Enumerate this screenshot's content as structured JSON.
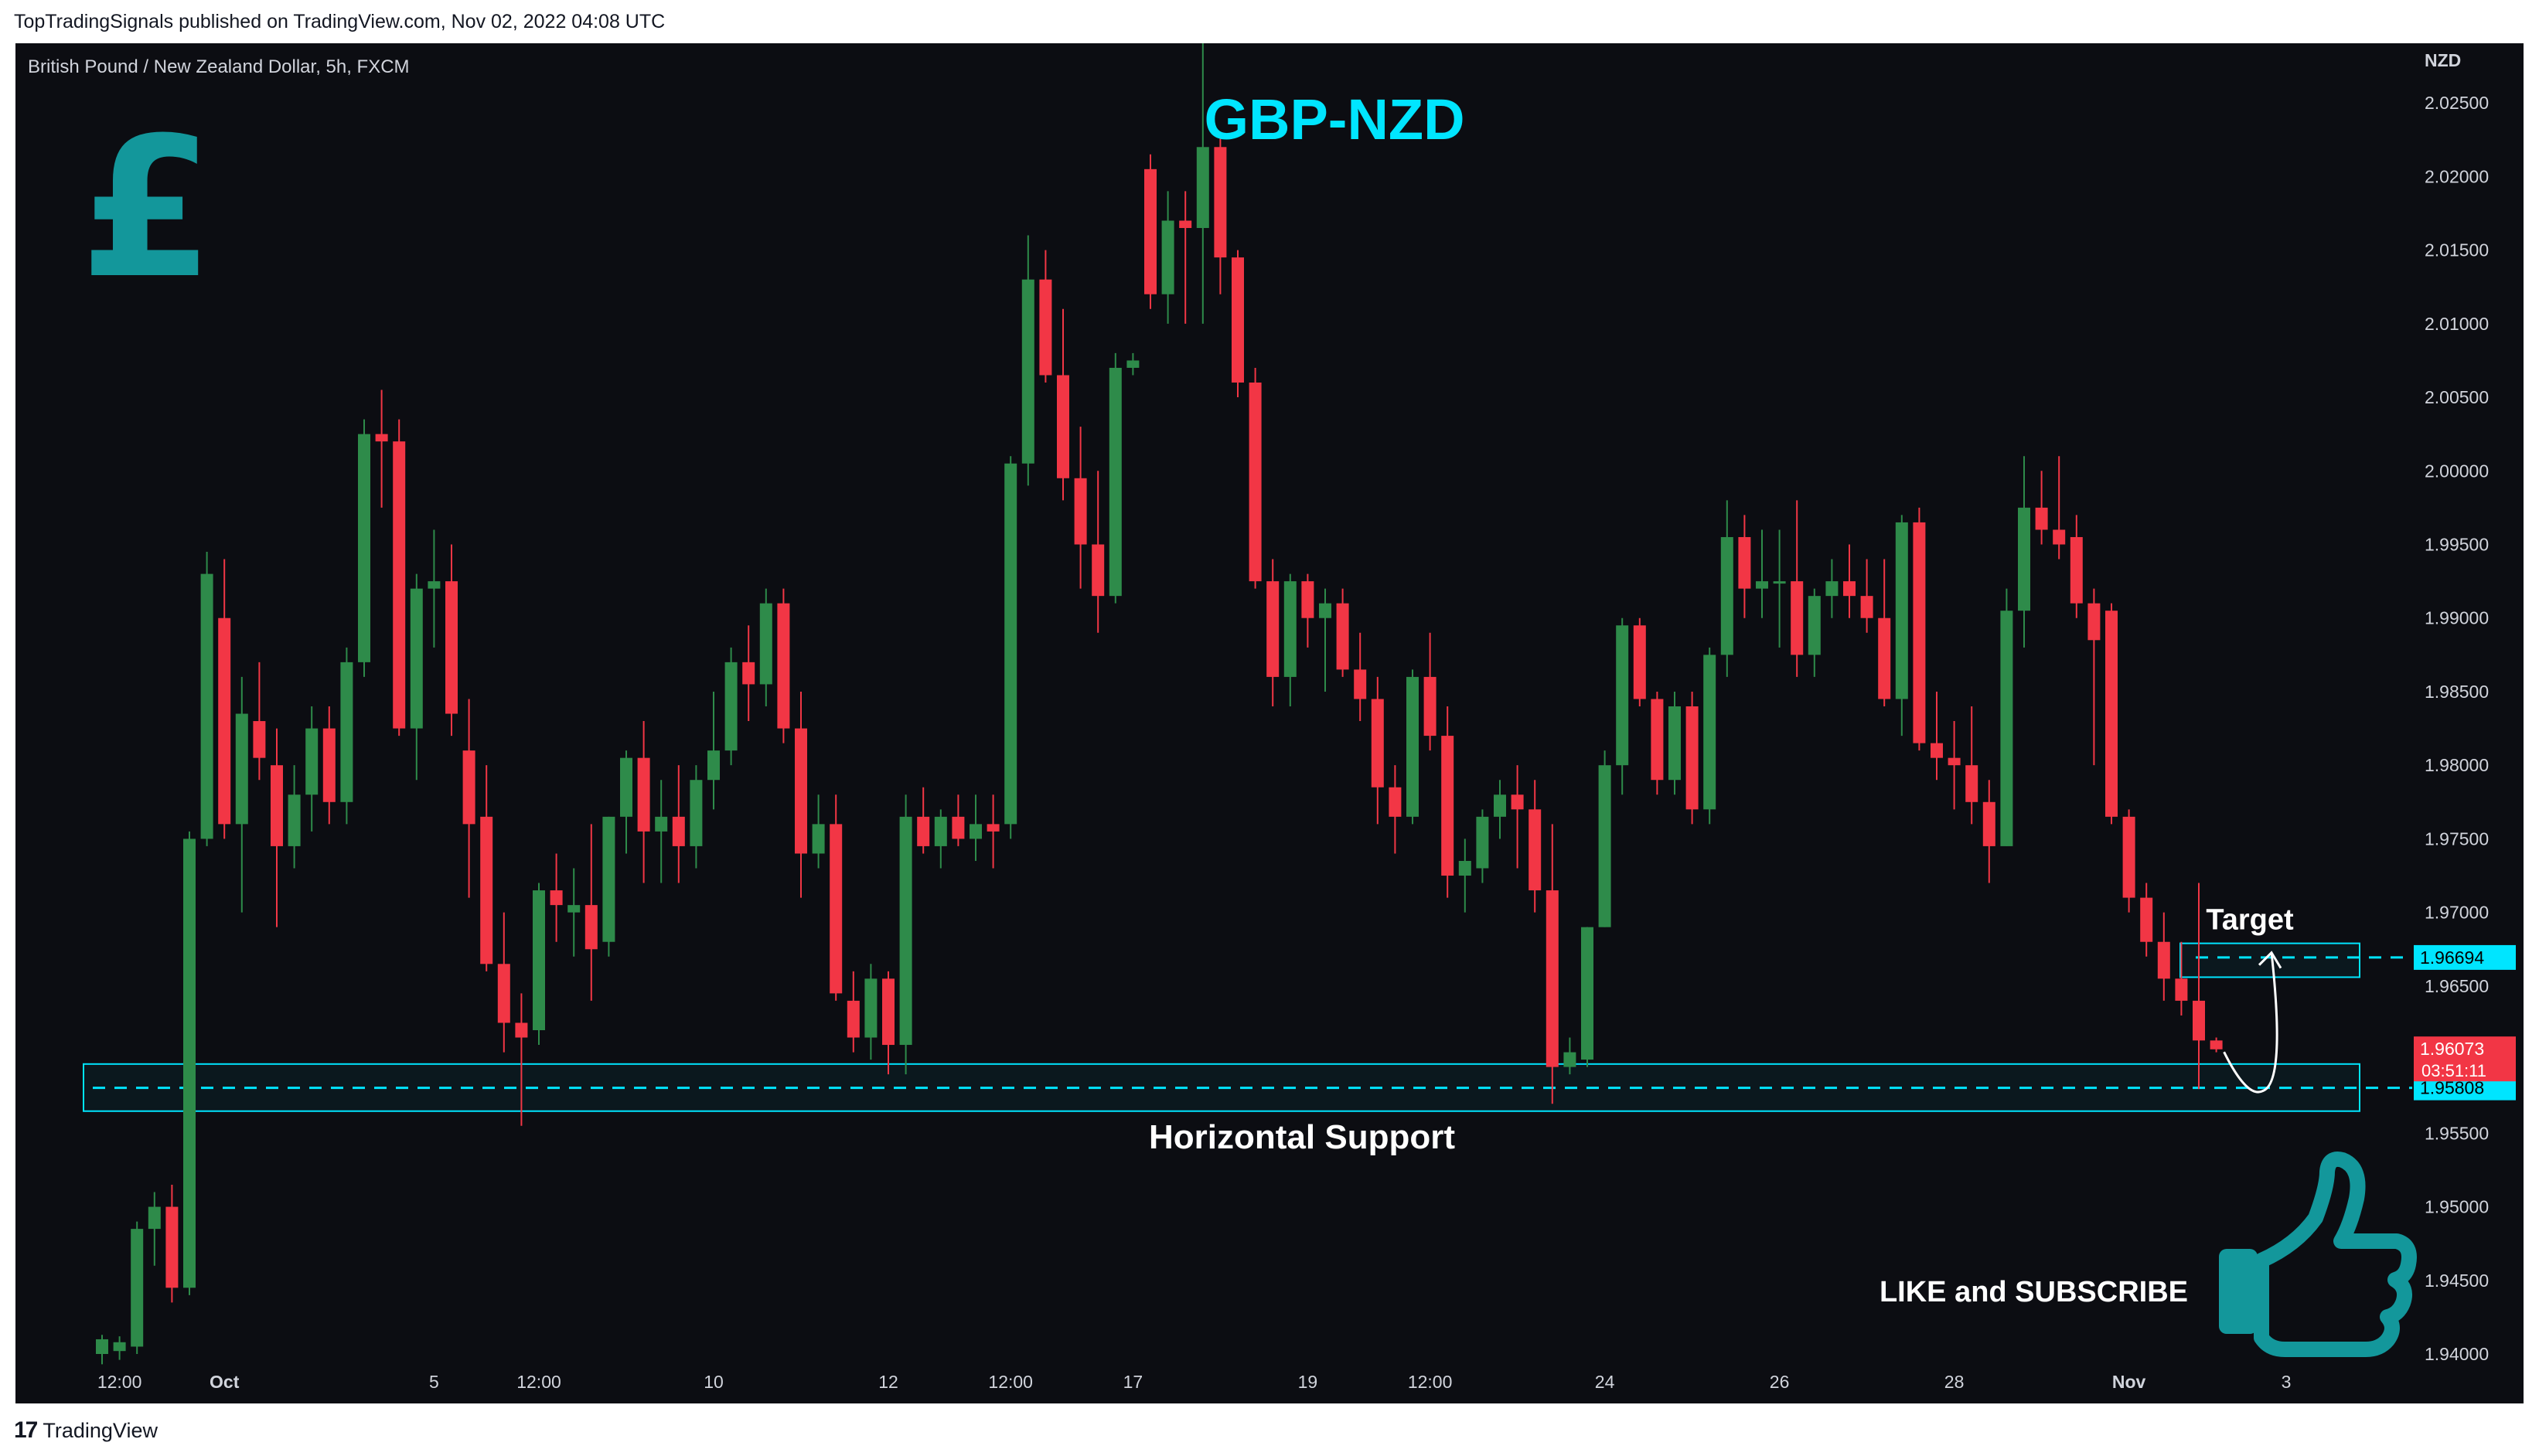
{
  "header": {
    "published": "TopTradingSignals published on TradingView.com, Nov 02, 2022 04:08 UTC"
  },
  "footer": {
    "brand_glyph": "17",
    "brand": "TradingView"
  },
  "colors": {
    "background": "#0c0d12",
    "bull": "#2e8b4a",
    "bear": "#f23645",
    "accent": "#00e5ff",
    "logo_teal": "#13979b",
    "axis_text": "#d1d4dc"
  },
  "icons": {
    "pound_logo": "pound-sign-icon",
    "thumb": "thumbs-up-icon"
  },
  "chart_data": {
    "type": "candlestick",
    "symbol_label": "British Pound / New Zealand Dollar, 5h, FXCM",
    "title": "GBP-NZD",
    "currency_label": "NZD",
    "ylim": [
      1.94,
      2.028
    ],
    "y_ticks": [
      "2.02500",
      "2.02000",
      "2.01500",
      "2.01000",
      "2.00500",
      "2.00000",
      "1.99500",
      "1.99000",
      "1.98500",
      "1.98000",
      "1.97500",
      "1.97000",
      "1.96500",
      "1.96000",
      "1.95500",
      "1.95000",
      "1.94500",
      "1.94000"
    ],
    "x_ticks": [
      "12:00",
      "Oct",
      "5",
      "12:00",
      "10",
      "12",
      "12:00",
      "17",
      "19",
      "12:00",
      "24",
      "26",
      "28",
      "Nov",
      "3"
    ],
    "x_tick_index": [
      1,
      7,
      19,
      25,
      35,
      45,
      52,
      59,
      69,
      76,
      86,
      96,
      106,
      116,
      125
    ],
    "candles": [
      {
        "o": 1.94,
        "h": 1.9413,
        "l": 1.9393,
        "c": 1.941
      },
      {
        "o": 1.9402,
        "h": 1.9412,
        "l": 1.9396,
        "c": 1.9408
      },
      {
        "o": 1.9405,
        "h": 1.949,
        "l": 1.94,
        "c": 1.9485
      },
      {
        "o": 1.9485,
        "h": 1.951,
        "l": 1.946,
        "c": 1.95
      },
      {
        "o": 1.95,
        "h": 1.9515,
        "l": 1.9435,
        "c": 1.9445
      },
      {
        "o": 1.9445,
        "h": 1.9755,
        "l": 1.944,
        "c": 1.975
      },
      {
        "o": 1.975,
        "h": 1.9945,
        "l": 1.9745,
        "c": 1.993
      },
      {
        "o": 1.99,
        "h": 1.994,
        "l": 1.975,
        "c": 1.976
      },
      {
        "o": 1.976,
        "h": 1.986,
        "l": 1.97,
        "c": 1.9835
      },
      {
        "o": 1.983,
        "h": 1.987,
        "l": 1.979,
        "c": 1.9805
      },
      {
        "o": 1.98,
        "h": 1.9825,
        "l": 1.969,
        "c": 1.9745
      },
      {
        "o": 1.9745,
        "h": 1.98,
        "l": 1.973,
        "c": 1.978
      },
      {
        "o": 1.978,
        "h": 1.984,
        "l": 1.9755,
        "c": 1.9825
      },
      {
        "o": 1.9825,
        "h": 1.984,
        "l": 1.976,
        "c": 1.9775
      },
      {
        "o": 1.9775,
        "h": 1.988,
        "l": 1.976,
        "c": 1.987
      },
      {
        "o": 1.987,
        "h": 2.0035,
        "l": 1.986,
        "c": 2.0025
      },
      {
        "o": 2.0025,
        "h": 2.0055,
        "l": 1.9975,
        "c": 2.002
      },
      {
        "o": 2.002,
        "h": 2.0035,
        "l": 1.982,
        "c": 1.9825
      },
      {
        "o": 1.9825,
        "h": 1.993,
        "l": 1.979,
        "c": 1.992
      },
      {
        "o": 1.992,
        "h": 1.996,
        "l": 1.988,
        "c": 1.9925
      },
      {
        "o": 1.9925,
        "h": 1.995,
        "l": 1.982,
        "c": 1.9835
      },
      {
        "o": 1.981,
        "h": 1.9845,
        "l": 1.971,
        "c": 1.976
      },
      {
        "o": 1.9765,
        "h": 1.98,
        "l": 1.966,
        "c": 1.9665
      },
      {
        "o": 1.9665,
        "h": 1.97,
        "l": 1.9605,
        "c": 1.9625
      },
      {
        "o": 1.9625,
        "h": 1.9645,
        "l": 1.9555,
        "c": 1.9615
      },
      {
        "o": 1.962,
        "h": 1.972,
        "l": 1.961,
        "c": 1.9715
      },
      {
        "o": 1.9715,
        "h": 1.974,
        "l": 1.968,
        "c": 1.9705
      },
      {
        "o": 1.97,
        "h": 1.973,
        "l": 1.967,
        "c": 1.9705
      },
      {
        "o": 1.9705,
        "h": 1.976,
        "l": 1.964,
        "c": 1.9675
      },
      {
        "o": 1.968,
        "h": 1.9765,
        "l": 1.967,
        "c": 1.9765
      },
      {
        "o": 1.9765,
        "h": 1.981,
        "l": 1.974,
        "c": 1.9805
      },
      {
        "o": 1.9805,
        "h": 1.983,
        "l": 1.972,
        "c": 1.9755
      },
      {
        "o": 1.9755,
        "h": 1.979,
        "l": 1.972,
        "c": 1.9765
      },
      {
        "o": 1.9765,
        "h": 1.98,
        "l": 1.972,
        "c": 1.9745
      },
      {
        "o": 1.9745,
        "h": 1.98,
        "l": 1.973,
        "c": 1.979
      },
      {
        "o": 1.979,
        "h": 1.985,
        "l": 1.977,
        "c": 1.981
      },
      {
        "o": 1.981,
        "h": 1.988,
        "l": 1.98,
        "c": 1.987
      },
      {
        "o": 1.987,
        "h": 1.9895,
        "l": 1.983,
        "c": 1.9855
      },
      {
        "o": 1.9855,
        "h": 1.992,
        "l": 1.984,
        "c": 1.991
      },
      {
        "o": 1.991,
        "h": 1.992,
        "l": 1.9815,
        "c": 1.9825
      },
      {
        "o": 1.9825,
        "h": 1.985,
        "l": 1.971,
        "c": 1.974
      },
      {
        "o": 1.974,
        "h": 1.978,
        "l": 1.973,
        "c": 1.976
      },
      {
        "o": 1.976,
        "h": 1.978,
        "l": 1.964,
        "c": 1.9645
      },
      {
        "o": 1.964,
        "h": 1.966,
        "l": 1.9605,
        "c": 1.9615
      },
      {
        "o": 1.9615,
        "h": 1.9665,
        "l": 1.96,
        "c": 1.9655
      },
      {
        "o": 1.9655,
        "h": 1.966,
        "l": 1.959,
        "c": 1.961
      },
      {
        "o": 1.961,
        "h": 1.978,
        "l": 1.959,
        "c": 1.9765
      },
      {
        "o": 1.9765,
        "h": 1.9785,
        "l": 1.974,
        "c": 1.9745
      },
      {
        "o": 1.9745,
        "h": 1.977,
        "l": 1.973,
        "c": 1.9765
      },
      {
        "o": 1.9765,
        "h": 1.978,
        "l": 1.9745,
        "c": 1.975
      },
      {
        "o": 1.975,
        "h": 1.978,
        "l": 1.9735,
        "c": 1.976
      },
      {
        "o": 1.976,
        "h": 1.978,
        "l": 1.973,
        "c": 1.9755
      },
      {
        "o": 1.976,
        "h": 2.001,
        "l": 1.975,
        "c": 2.0005
      },
      {
        "o": 2.0005,
        "h": 2.016,
        "l": 1.999,
        "c": 2.013
      },
      {
        "o": 2.013,
        "h": 2.015,
        "l": 2.006,
        "c": 2.0065
      },
      {
        "o": 2.0065,
        "h": 2.011,
        "l": 1.998,
        "c": 1.9995
      },
      {
        "o": 1.9995,
        "h": 2.003,
        "l": 1.992,
        "c": 1.995
      },
      {
        "o": 1.995,
        "h": 2.0,
        "l": 1.989,
        "c": 1.9915
      },
      {
        "o": 1.9915,
        "h": 2.008,
        "l": 1.991,
        "c": 2.007
      },
      {
        "o": 2.007,
        "h": 2.008,
        "l": 2.0065,
        "c": 2.0075
      },
      {
        "o": 2.0205,
        "h": 2.0215,
        "l": 2.011,
        "c": 2.012
      },
      {
        "o": 2.012,
        "h": 2.019,
        "l": 2.01,
        "c": 2.017
      },
      {
        "o": 2.017,
        "h": 2.019,
        "l": 2.01,
        "c": 2.0165
      },
      {
        "o": 2.0165,
        "h": 2.032,
        "l": 2.01,
        "c": 2.022
      },
      {
        "o": 2.022,
        "h": 2.023,
        "l": 2.012,
        "c": 2.0145
      },
      {
        "o": 2.0145,
        "h": 2.015,
        "l": 2.005,
        "c": 2.006
      },
      {
        "o": 2.006,
        "h": 2.007,
        "l": 1.992,
        "c": 1.9925
      },
      {
        "o": 1.9925,
        "h": 1.994,
        "l": 1.984,
        "c": 1.986
      },
      {
        "o": 1.986,
        "h": 1.993,
        "l": 1.984,
        "c": 1.9925
      },
      {
        "o": 1.9925,
        "h": 1.993,
        "l": 1.988,
        "c": 1.99
      },
      {
        "o": 1.99,
        "h": 1.992,
        "l": 1.985,
        "c": 1.991
      },
      {
        "o": 1.991,
        "h": 1.992,
        "l": 1.986,
        "c": 1.9865
      },
      {
        "o": 1.9865,
        "h": 1.989,
        "l": 1.983,
        "c": 1.9845
      },
      {
        "o": 1.9845,
        "h": 1.986,
        "l": 1.976,
        "c": 1.9785
      },
      {
        "o": 1.9785,
        "h": 1.98,
        "l": 1.974,
        "c": 1.9765
      },
      {
        "o": 1.9765,
        "h": 1.9865,
        "l": 1.976,
        "c": 1.986
      },
      {
        "o": 1.986,
        "h": 1.989,
        "l": 1.981,
        "c": 1.982
      },
      {
        "o": 1.982,
        "h": 1.984,
        "l": 1.971,
        "c": 1.9725
      },
      {
        "o": 1.9725,
        "h": 1.975,
        "l": 1.97,
        "c": 1.9735
      },
      {
        "o": 1.973,
        "h": 1.977,
        "l": 1.972,
        "c": 1.9765
      },
      {
        "o": 1.9765,
        "h": 1.979,
        "l": 1.975,
        "c": 1.978
      },
      {
        "o": 1.978,
        "h": 1.98,
        "l": 1.973,
        "c": 1.977
      },
      {
        "o": 1.977,
        "h": 1.979,
        "l": 1.97,
        "c": 1.9715
      },
      {
        "o": 1.9715,
        "h": 1.976,
        "l": 1.957,
        "c": 1.9595
      },
      {
        "o": 1.9595,
        "h": 1.9615,
        "l": 1.959,
        "c": 1.9605
      },
      {
        "o": 1.96,
        "h": 1.969,
        "l": 1.9595,
        "c": 1.969
      },
      {
        "o": 1.969,
        "h": 1.981,
        "l": 1.969,
        "c": 1.98
      },
      {
        "o": 1.98,
        "h": 1.99,
        "l": 1.978,
        "c": 1.9895
      },
      {
        "o": 1.9895,
        "h": 1.99,
        "l": 1.984,
        "c": 1.9845
      },
      {
        "o": 1.9845,
        "h": 1.985,
        "l": 1.978,
        "c": 1.979
      },
      {
        "o": 1.979,
        "h": 1.985,
        "l": 1.978,
        "c": 1.984
      },
      {
        "o": 1.984,
        "h": 1.985,
        "l": 1.976,
        "c": 1.977
      },
      {
        "o": 1.977,
        "h": 1.988,
        "l": 1.976,
        "c": 1.9875
      },
      {
        "o": 1.9875,
        "h": 1.998,
        "l": 1.986,
        "c": 1.9955
      },
      {
        "o": 1.9955,
        "h": 1.997,
        "l": 1.99,
        "c": 1.992
      },
      {
        "o": 1.992,
        "h": 1.996,
        "l": 1.99,
        "c": 1.9925
      },
      {
        "o": 1.9925,
        "h": 1.996,
        "l": 1.988,
        "c": 1.9925
      },
      {
        "o": 1.9925,
        "h": 1.998,
        "l": 1.986,
        "c": 1.9875
      },
      {
        "o": 1.9875,
        "h": 1.992,
        "l": 1.986,
        "c": 1.9915
      },
      {
        "o": 1.9915,
        "h": 1.994,
        "l": 1.99,
        "c": 1.9925
      },
      {
        "o": 1.9925,
        "h": 1.995,
        "l": 1.99,
        "c": 1.9915
      },
      {
        "o": 1.9915,
        "h": 1.994,
        "l": 1.989,
        "c": 1.99
      },
      {
        "o": 1.99,
        "h": 1.994,
        "l": 1.984,
        "c": 1.9845
      },
      {
        "o": 1.9845,
        "h": 1.997,
        "l": 1.982,
        "c": 1.9965
      },
      {
        "o": 1.9965,
        "h": 1.9975,
        "l": 1.981,
        "c": 1.9815
      },
      {
        "o": 1.9815,
        "h": 1.985,
        "l": 1.979,
        "c": 1.9805
      },
      {
        "o": 1.9805,
        "h": 1.983,
        "l": 1.977,
        "c": 1.98
      },
      {
        "o": 1.98,
        "h": 1.984,
        "l": 1.976,
        "c": 1.9775
      },
      {
        "o": 1.9775,
        "h": 1.979,
        "l": 1.972,
        "c": 1.9745
      },
      {
        "o": 1.9745,
        "h": 1.992,
        "l": 1.9745,
        "c": 1.9905
      },
      {
        "o": 1.9905,
        "h": 2.001,
        "l": 1.988,
        "c": 1.9975
      },
      {
        "o": 1.9975,
        "h": 2.0,
        "l": 1.995,
        "c": 1.996
      },
      {
        "o": 1.996,
        "h": 2.001,
        "l": 1.994,
        "c": 1.995
      },
      {
        "o": 1.9955,
        "h": 1.997,
        "l": 1.99,
        "c": 1.991
      },
      {
        "o": 1.991,
        "h": 1.992,
        "l": 1.98,
        "c": 1.9885
      },
      {
        "o": 1.9905,
        "h": 1.991,
        "l": 1.976,
        "c": 1.9765
      },
      {
        "o": 1.9765,
        "h": 1.977,
        "l": 1.97,
        "c": 1.971
      },
      {
        "o": 1.971,
        "h": 1.972,
        "l": 1.967,
        "c": 1.968
      },
      {
        "o": 1.968,
        "h": 1.97,
        "l": 1.964,
        "c": 1.9655
      },
      {
        "o": 1.9655,
        "h": 1.968,
        "l": 1.963,
        "c": 1.964
      },
      {
        "o": 1.964,
        "h": 1.972,
        "l": 1.958,
        "c": 1.9613
      },
      {
        "o": 1.9613,
        "h": 1.9615,
        "l": 1.9605,
        "c": 1.9607
      }
    ],
    "support": {
      "label": "Horizontal Support",
      "price": "1.95808",
      "value": 1.95808,
      "zone": [
        1.9565,
        1.9597
      ]
    },
    "target": {
      "label": "Target",
      "price": "1.96694",
      "value": 1.96694,
      "zone": [
        1.9656,
        1.9679
      ]
    },
    "current": {
      "price": "1.96073",
      "value": 1.96073,
      "countdown": "03:51:11"
    },
    "annotations": {
      "cta": "LIKE and SUBSCRIBE",
      "logo_glyph": "£"
    }
  }
}
